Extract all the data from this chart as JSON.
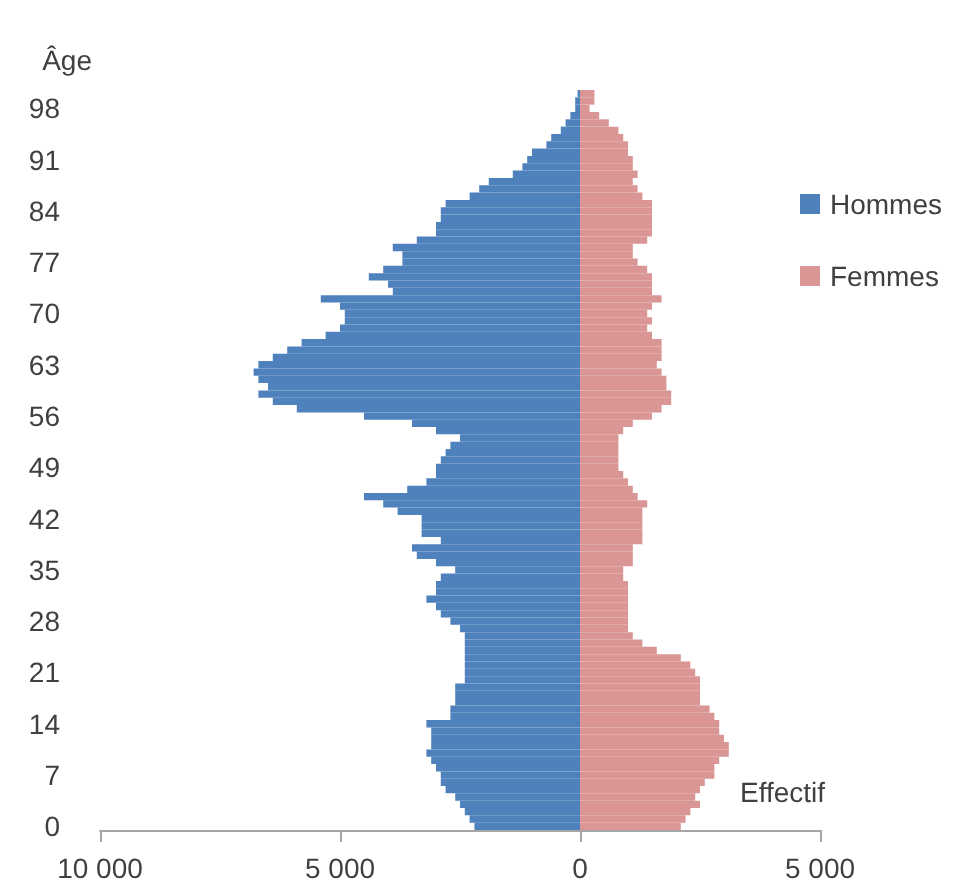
{
  "chart_data": {
    "type": "bar",
    "orientation": "horizontal",
    "stacked": true,
    "ylabel": "Âge",
    "xlabel": "Effectif",
    "categories": [
      null,
      null,
      "98",
      null,
      null,
      null,
      null,
      null,
      null,
      "91",
      null,
      null,
      null,
      null,
      null,
      null,
      "84",
      null,
      null,
      null,
      null,
      null,
      null,
      "77",
      null,
      null,
      null,
      null,
      null,
      null,
      "70",
      null,
      null,
      null,
      null,
      null,
      null,
      "63",
      null,
      null,
      null,
      null,
      null,
      null,
      "56",
      null,
      null,
      null,
      null,
      null,
      null,
      "49",
      null,
      null,
      null,
      null,
      null,
      null,
      "42",
      null,
      null,
      null,
      null,
      null,
      null,
      "35",
      null,
      null,
      null,
      null,
      null,
      null,
      "28",
      null,
      null,
      null,
      null,
      null,
      null,
      "21",
      null,
      null,
      null,
      null,
      null,
      null,
      "14",
      null,
      null,
      null,
      null,
      null,
      null,
      "7",
      null,
      null,
      null,
      null,
      null,
      null,
      "0"
    ],
    "series": [
      {
        "name": "Hommes",
        "color": "#4f81bd",
        "values": [
          -50,
          -100,
          -100,
          -200,
          -300,
          -400,
          -600,
          -700,
          -1000,
          -1100,
          -1200,
          -1400,
          -1900,
          -2100,
          -2300,
          -2800,
          -2900,
          -2900,
          -3000,
          -3000,
          -3400,
          -3900,
          -3700,
          -3700,
          -4100,
          -4400,
          -4000,
          -3900,
          -5400,
          -5000,
          -4900,
          -4900,
          -5000,
          -5300,
          -5800,
          -6100,
          -6400,
          -6700,
          -6800,
          -6700,
          -6500,
          -6700,
          -6400,
          -5900,
          -4500,
          -3500,
          -3000,
          -2500,
          -2700,
          -2800,
          -2900,
          -3000,
          -3000,
          -3200,
          -3600,
          -4500,
          -4100,
          -3800,
          -3300,
          -3300,
          -3300,
          -2900,
          -3500,
          -3400,
          -3000,
          -2600,
          -2900,
          -3000,
          -3000,
          -3200,
          -3000,
          -2900,
          -2700,
          -2500,
          -2400,
          -2400,
          -2400,
          -2400,
          -2400,
          -2400,
          -2400,
          -2600,
          -2600,
          -2600,
          -2700,
          -2700,
          -3200,
          -3100,
          -3100,
          -3100,
          -3200,
          -3100,
          -3000,
          -2900,
          -2900,
          -2800,
          -2600,
          -2500,
          -2400,
          -2300,
          -2200
        ]
      },
      {
        "name": "Femmes",
        "color": "#d99694",
        "values": [
          300,
          300,
          200,
          400,
          600,
          800,
          900,
          1000,
          1000,
          1100,
          1100,
          1200,
          1100,
          1200,
          1300,
          1500,
          1500,
          1500,
          1500,
          1500,
          1400,
          1100,
          1100,
          1200,
          1400,
          1500,
          1500,
          1500,
          1700,
          1500,
          1400,
          1500,
          1400,
          1500,
          1700,
          1700,
          1700,
          1600,
          1700,
          1800,
          1800,
          1900,
          1900,
          1700,
          1500,
          1100,
          900,
          800,
          800,
          800,
          800,
          800,
          900,
          1000,
          1100,
          1200,
          1400,
          1300,
          1300,
          1300,
          1300,
          1300,
          1100,
          1100,
          1100,
          900,
          900,
          1000,
          1000,
          1000,
          1000,
          1000,
          1000,
          1000,
          1100,
          1300,
          1600,
          2100,
          2300,
          2400,
          2500,
          2500,
          2500,
          2500,
          2700,
          2800,
          2900,
          2900,
          3000,
          3100,
          3100,
          2900,
          2800,
          2800,
          2600,
          2500,
          2400,
          2500,
          2300,
          2200,
          2100
        ]
      }
    ],
    "xlim": [
      -10000,
      5000
    ],
    "xticks": [
      {
        "value": -10000,
        "label": "10 000"
      },
      {
        "value": -5000,
        "label": "5 000"
      },
      0,
      {
        "value": 5000,
        "label": "5 000"
      }
    ],
    "legend": "right"
  }
}
